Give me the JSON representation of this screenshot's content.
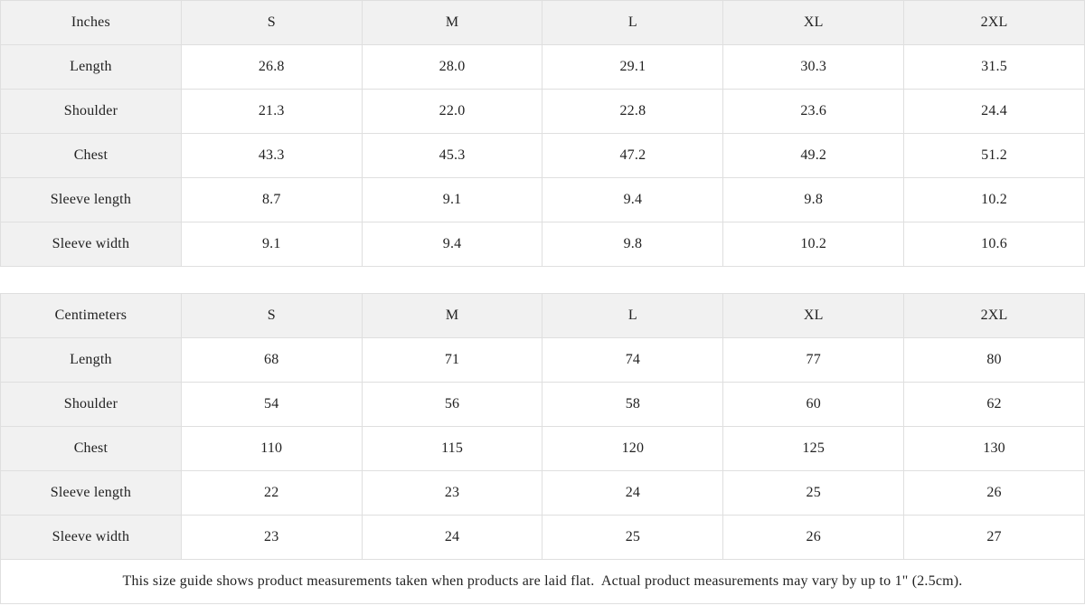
{
  "colors": {
    "cell_shade_background": "#f1f1f1",
    "border": "#dfdfdf",
    "text": "#222222",
    "page_background": "#ffffff"
  },
  "tables": [
    {
      "unit_label": "Inches",
      "sizes": [
        "S",
        "M",
        "L",
        "XL",
        "2XL"
      ],
      "rows": [
        {
          "label": "Length",
          "values": [
            "26.8",
            "28.0",
            "29.1",
            "30.3",
            "31.5"
          ]
        },
        {
          "label": "Shoulder",
          "values": [
            "21.3",
            "22.0",
            "22.8",
            "23.6",
            "24.4"
          ]
        },
        {
          "label": "Chest",
          "values": [
            "43.3",
            "45.3",
            "47.2",
            "49.2",
            "51.2"
          ]
        },
        {
          "label": "Sleeve length",
          "values": [
            "8.7",
            "9.1",
            "9.4",
            "9.8",
            "10.2"
          ]
        },
        {
          "label": "Sleeve width",
          "values": [
            "9.1",
            "9.4",
            "9.8",
            "10.2",
            "10.6"
          ]
        }
      ]
    },
    {
      "unit_label": "Centimeters",
      "sizes": [
        "S",
        "M",
        "L",
        "XL",
        "2XL"
      ],
      "rows": [
        {
          "label": "Length",
          "values": [
            "68",
            "71",
            "74",
            "77",
            "80"
          ]
        },
        {
          "label": "Shoulder",
          "values": [
            "54",
            "56",
            "58",
            "60",
            "62"
          ]
        },
        {
          "label": "Chest",
          "values": [
            "110",
            "115",
            "120",
            "125",
            "130"
          ]
        },
        {
          "label": "Sleeve length",
          "values": [
            "22",
            "23",
            "24",
            "25",
            "26"
          ]
        },
        {
          "label": "Sleeve width",
          "values": [
            "23",
            "24",
            "25",
            "26",
            "27"
          ]
        }
      ]
    }
  ],
  "footer": {
    "note": "This size guide shows product measurements taken when products are laid flat.  Actual product measurements may vary by up to 1\" (2.5cm)."
  }
}
